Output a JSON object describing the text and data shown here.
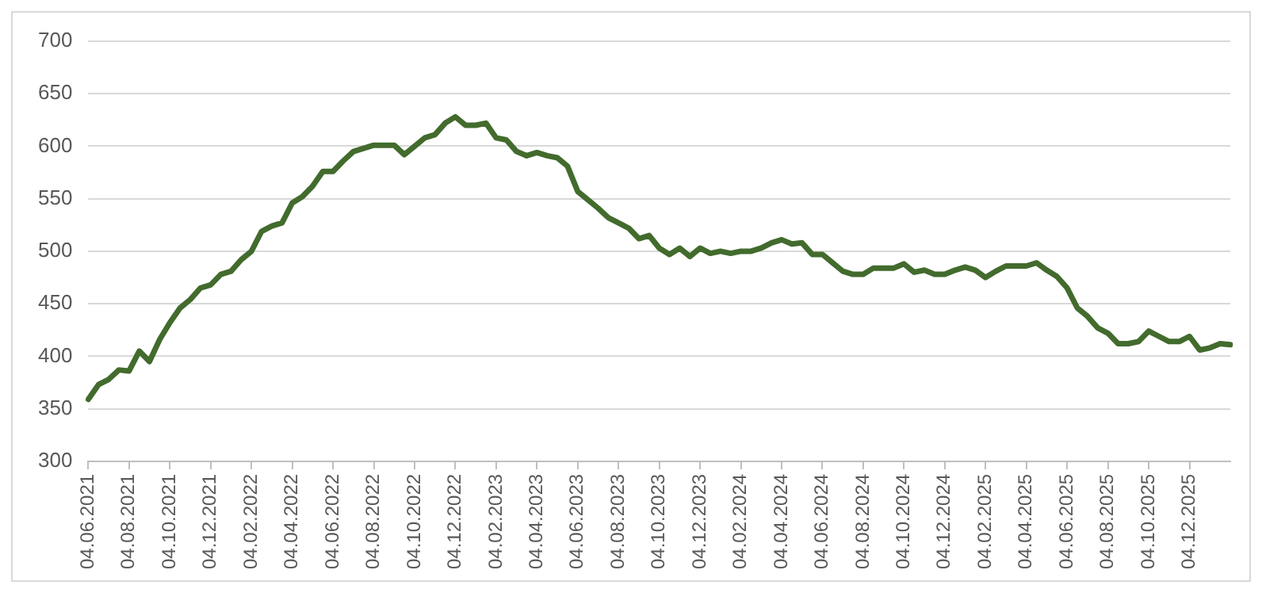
{
  "chart_data": {
    "type": "line",
    "categories": [
      "04.06.2021",
      null,
      null,
      null,
      "04.08.2021",
      null,
      null,
      null,
      "04.10.2021",
      null,
      null,
      null,
      "04.12.2021",
      null,
      null,
      null,
      "04.02.2022",
      null,
      null,
      null,
      "04.04.2022",
      null,
      null,
      null,
      "04.06.2022",
      null,
      null,
      null,
      "04.08.2022",
      null,
      null,
      null,
      "04.10.2022",
      null,
      null,
      null,
      "04.12.2022",
      null,
      null,
      null,
      "04.02.2023",
      null,
      null,
      null,
      "04.04.2023",
      null,
      null,
      null,
      "04.06.2023",
      null,
      null,
      null,
      "04.08.2023",
      null,
      null,
      null,
      "04.10.2023",
      null,
      null,
      null,
      "04.12.2023",
      null,
      null,
      null,
      "04.02.2024",
      null,
      null,
      null,
      "04.04.2024",
      null,
      null,
      null,
      "04.06.2024",
      null,
      null,
      null,
      "04.08.2024",
      null,
      null,
      null,
      "04.10.2024",
      null,
      null,
      null,
      "04.12.2024",
      null,
      null,
      null,
      "04.02.2025",
      null,
      null,
      null,
      "04.04.2025",
      null,
      null,
      null,
      "04.06.2025",
      null,
      null,
      null,
      "04.08.2025",
      null,
      null,
      null,
      "04.10.2025",
      null,
      null,
      null,
      "04.12.2025",
      null,
      null,
      null,
      null
    ],
    "series": [
      {
        "color": "#426b2d",
        "values": [
          359,
          373,
          378,
          387,
          386,
          405,
          395,
          416,
          432,
          446,
          454,
          465,
          468,
          478,
          481,
          492,
          500,
          519,
          524,
          527,
          546,
          552,
          562,
          576,
          576,
          586,
          595,
          598,
          601,
          601,
          601,
          592,
          600,
          608,
          611,
          622,
          628,
          620,
          620,
          622,
          608,
          606,
          595,
          591,
          594,
          591,
          589,
          581,
          557,
          549,
          541,
          532,
          527,
          522,
          512,
          515,
          503,
          497,
          503,
          495,
          503,
          498,
          500,
          498,
          500,
          500,
          503,
          508,
          511,
          507,
          508,
          497,
          497,
          489,
          481,
          478,
          478,
          484,
          484,
          484,
          488,
          480,
          482,
          478,
          478,
          482,
          485,
          482,
          475,
          481,
          486,
          486,
          486,
          489,
          482,
          476,
          465,
          446,
          438,
          427,
          422,
          412,
          412,
          414,
          424,
          419,
          414,
          414,
          419,
          406,
          408,
          412,
          411
        ]
      }
    ],
    "ylim": [
      300,
      700
    ],
    "yticks": [
      300,
      350,
      400,
      450,
      500,
      550,
      600,
      650,
      700
    ],
    "grid": "y",
    "legend": false,
    "marker": "none",
    "line_style": "solid"
  }
}
